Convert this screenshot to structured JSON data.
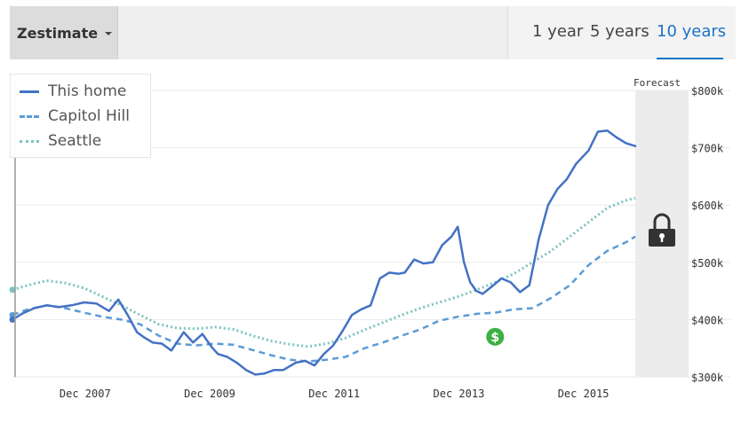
{
  "toolbar": {
    "metric_label": "Zestimate",
    "ranges": [
      "1 year",
      "5 years",
      "10 years"
    ],
    "active_range": "10 years"
  },
  "forecast_label": "Forecast",
  "icons": {
    "lock": "lock-icon",
    "dollar": "dollar-marker-icon",
    "dropdown": "caret-down-icon"
  },
  "colors": {
    "this_home": "#4472c4",
    "capitol_hill": "#5b9bd5",
    "seattle": "#7cc4c0",
    "forecast_bg": "#ececec",
    "grid": "#eaeaea",
    "accent": "#1a73c8",
    "dollar_marker": "#3cb043"
  },
  "chart_data": {
    "type": "line",
    "title": "",
    "xlabel": "",
    "ylabel": "",
    "x_range": [
      2006.75,
      2016.75
    ],
    "ylim": [
      300000,
      800000
    ],
    "y_ticks": [
      300000,
      400000,
      500000,
      600000,
      700000,
      800000
    ],
    "y_tick_labels": [
      "$300k",
      "$400k",
      "$500k",
      "$600k",
      "$700k",
      "$800k"
    ],
    "x_ticks": [
      2007.917,
      2009.917,
      2011.917,
      2013.917,
      2015.917
    ],
    "x_tick_labels": [
      "Dec 2007",
      "Dec 2009",
      "Dec 2011",
      "Dec 2013",
      "Dec 2015"
    ],
    "grid": true,
    "legend_position": "top-left",
    "forecast_start": 2016.75,
    "annotations": [
      {
        "type": "dollar",
        "x": 2014.5,
        "y": 370000
      }
    ],
    "series": [
      {
        "name": "This home",
        "style": "solid",
        "x": [
          2006.75,
          2006.9,
          2007.1,
          2007.3,
          2007.5,
          2007.7,
          2007.9,
          2008.1,
          2008.3,
          2008.45,
          2008.6,
          2008.75,
          2008.85,
          2009.0,
          2009.15,
          2009.3,
          2009.5,
          2009.65,
          2009.8,
          2009.95,
          2010.05,
          2010.2,
          2010.35,
          2010.5,
          2010.65,
          2010.8,
          2010.95,
          2011.1,
          2011.3,
          2011.45,
          2011.6,
          2011.75,
          2011.9,
          2012.05,
          2012.2,
          2012.35,
          2012.5,
          2012.65,
          2012.8,
          2012.95,
          2013.05,
          2013.2,
          2013.35,
          2013.5,
          2013.65,
          2013.8,
          2013.9,
          2014.0,
          2014.1,
          2014.2,
          2014.3,
          2014.45,
          2014.6,
          2014.75,
          2014.9,
          2015.05,
          2015.2,
          2015.35,
          2015.5,
          2015.65,
          2015.8,
          2016.0,
          2016.15,
          2016.3,
          2016.45,
          2016.6,
          2016.75
        ],
        "values": [
          400000,
          410000,
          420000,
          425000,
          422000,
          425000,
          430000,
          428000,
          415000,
          435000,
          408000,
          378000,
          370000,
          360000,
          358000,
          346000,
          378000,
          360000,
          375000,
          352000,
          340000,
          335000,
          325000,
          312000,
          304000,
          306000,
          312000,
          312000,
          325000,
          328000,
          320000,
          340000,
          355000,
          380000,
          408000,
          418000,
          425000,
          472000,
          482000,
          480000,
          482000,
          505000,
          498000,
          500000,
          530000,
          545000,
          562000,
          500000,
          465000,
          450000,
          445000,
          458000,
          472000,
          465000,
          448000,
          460000,
          540000,
          600000,
          628000,
          645000,
          672000,
          695000,
          728000,
          730000,
          718000,
          708000,
          703000
        ]
      },
      {
        "name": "Capitol Hill",
        "style": "dashed",
        "x": [
          2006.75,
          2007.0,
          2007.3,
          2007.6,
          2007.9,
          2008.2,
          2008.5,
          2008.8,
          2009.1,
          2009.4,
          2009.7,
          2010.0,
          2010.3,
          2010.6,
          2010.9,
          2011.2,
          2011.5,
          2011.8,
          2012.1,
          2012.4,
          2012.7,
          2013.0,
          2013.3,
          2013.6,
          2013.9,
          2014.2,
          2014.5,
          2014.8,
          2015.1,
          2015.4,
          2015.7,
          2016.0,
          2016.3,
          2016.6,
          2016.75
        ],
        "values": [
          408000,
          418000,
          425000,
          420000,
          412000,
          405000,
          400000,
          392000,
          372000,
          358000,
          355000,
          358000,
          356000,
          347000,
          338000,
          330000,
          327000,
          330000,
          335000,
          350000,
          360000,
          372000,
          383000,
          398000,
          405000,
          410000,
          412000,
          418000,
          420000,
          438000,
          460000,
          495000,
          520000,
          535000,
          545000
        ]
      },
      {
        "name": "Seattle",
        "style": "dotted",
        "x": [
          2006.75,
          2007.0,
          2007.3,
          2007.6,
          2007.9,
          2008.2,
          2008.5,
          2008.8,
          2009.1,
          2009.4,
          2009.7,
          2010.0,
          2010.3,
          2010.6,
          2010.9,
          2011.2,
          2011.5,
          2011.8,
          2012.1,
          2012.4,
          2012.7,
          2013.0,
          2013.3,
          2013.6,
          2013.9,
          2014.2,
          2014.5,
          2014.8,
          2015.1,
          2015.4,
          2015.7,
          2016.0,
          2016.3,
          2016.6,
          2016.75
        ],
        "values": [
          452000,
          460000,
          468000,
          464000,
          455000,
          440000,
          425000,
          408000,
          392000,
          385000,
          384000,
          387000,
          383000,
          372000,
          363000,
          357000,
          353000,
          358000,
          368000,
          382000,
          395000,
          408000,
          420000,
          430000,
          440000,
          452000,
          465000,
          480000,
          500000,
          520000,
          545000,
          570000,
          595000,
          608000,
          612000
        ]
      }
    ]
  }
}
